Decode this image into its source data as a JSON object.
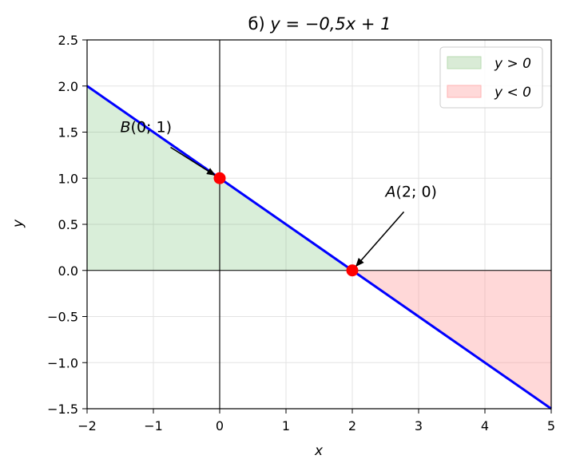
{
  "chart_data": {
    "type": "line",
    "title_prefix": "б)",
    "title_equation": "y = −0,5x + 1",
    "xlabel": "x",
    "ylabel": "y",
    "xlim": [
      -2,
      5
    ],
    "ylim": [
      -1.5,
      2.5
    ],
    "x_ticks": [
      -2,
      -1,
      0,
      1,
      2,
      3,
      4,
      5
    ],
    "x_tick_labels": [
      "−2",
      "−1",
      "0",
      "1",
      "2",
      "3",
      "4",
      "5"
    ],
    "y_ticks": [
      -1.5,
      -1.0,
      -0.5,
      0.0,
      0.5,
      1.0,
      1.5,
      2.0,
      2.5
    ],
    "y_tick_labels": [
      "−1.5",
      "−1.0",
      "−0.5",
      "0.0",
      "0.5",
      "1.0",
      "1.5",
      "2.0",
      "2.5"
    ],
    "grid": true,
    "legend_position": "top-right",
    "series": [
      {
        "x": [
          -2,
          5
        ],
        "y": [
          2,
          -1.5
        ],
        "color": "#0000ff"
      }
    ],
    "regions": [
      {
        "label": "y > 0",
        "x_range": [
          -2,
          2
        ],
        "color": "#2ca02c",
        "sign": "positive"
      },
      {
        "label": "y < 0",
        "x_range": [
          2,
          5
        ],
        "color": "#ff9999",
        "sign": "negative"
      }
    ],
    "points": [
      {
        "name": "B",
        "x": 0,
        "y": 1,
        "text": "B(0; 1)",
        "text_xy": [
          -1.5,
          1.5
        ]
      },
      {
        "name": "A",
        "x": 2,
        "y": 0,
        "text": "A(2; 0)",
        "text_xy": [
          2.5,
          0.8
        ]
      }
    ],
    "legend": [
      {
        "label": "y > 0",
        "fill": "#d9ebd6",
        "stroke": "#b9dbb1"
      },
      {
        "label": "y < 0",
        "fill": "#ffd9d9",
        "stroke": "#ffb3b3"
      }
    ]
  }
}
